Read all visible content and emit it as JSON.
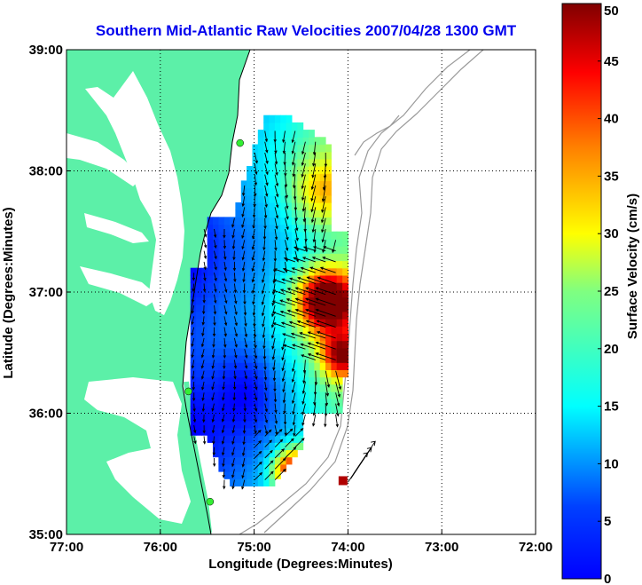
{
  "title": "Southern Mid-Atlantic Raw Velocities 2007/04/28 1300 GMT",
  "colors": {
    "title": "#0000ee",
    "land": "#5cf0a8",
    "water": "#ffffff",
    "coast": "#000000",
    "bathymetry": "#9a9a9a",
    "stations": "#33ee33"
  },
  "chart_data": {
    "type": "heatmap",
    "xlabel": "Longitude (Degrees:Minutes)",
    "ylabel": "Latitude (Degrees:Minutes)",
    "x_ticks": [
      "77:00",
      "76:00",
      "75:00",
      "74:00",
      "73:00",
      "72:00"
    ],
    "y_ticks": [
      "39:00",
      "38:00",
      "37:00",
      "36:00",
      "35:00"
    ],
    "xlim": [
      -77,
      -72
    ],
    "ylim": [
      35,
      39
    ],
    "grid": true,
    "colorbar": {
      "label": "Surface Velocity (cm/s)",
      "min": 0,
      "max": 50,
      "ticks": [
        "50",
        "45",
        "40",
        "35",
        "30",
        "25",
        "20",
        "15",
        "10",
        "5",
        "0"
      ],
      "colormap": "jet"
    },
    "stations": [
      {
        "lon": -75.15,
        "lat": 38.23
      },
      {
        "lon": -75.7,
        "lat": 36.18
      },
      {
        "lon": -75.47,
        "lat": 35.27
      }
    ]
  }
}
